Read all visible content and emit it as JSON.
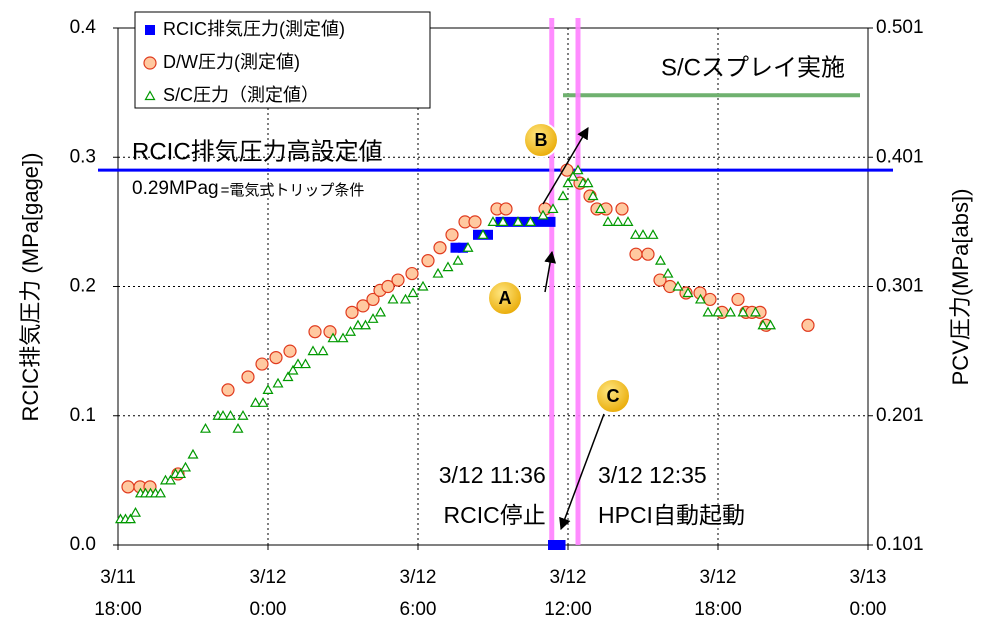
{
  "chart_data": {
    "type": "scatter",
    "y_label": "RCIC排気圧力 (MPa[gage])",
    "y2_label": "PCV圧力(MPa[abs])",
    "xlim": [
      0,
      30
    ],
    "xticks": [
      {
        "value": 0,
        "label": "3/11\n18:00"
      },
      {
        "value": 6,
        "label": "3/12\n0:00"
      },
      {
        "value": 12,
        "label": "3/12\n6:00"
      },
      {
        "value": 18,
        "label": "3/12\n12:00"
      },
      {
        "value": 24,
        "label": "3/12\n18:00"
      },
      {
        "value": 30,
        "label": "3/13\n0:00"
      }
    ],
    "ylim": [
      0,
      0.4
    ],
    "yticks": [
      {
        "value": 0,
        "label": "0.0"
      },
      0.1,
      0.2,
      0.3,
      0.4
    ],
    "y2lim": [
      0.101,
      0.501
    ],
    "y2ticks": [
      0.101,
      0.201,
      0.301,
      0.401,
      0.501
    ],
    "grid": true,
    "legend": "upper left",
    "series": [
      {
        "name": "RCIC排気圧力(測定値)",
        "marker": "square",
        "color": "#0000ff",
        "x": [
          13.5,
          13.8,
          14.4,
          14.8,
          15.3,
          15.7,
          16.1,
          16.5,
          16.9,
          17.3,
          17.4,
          17.7
        ],
        "values": [
          0.23,
          0.23,
          0.24,
          0.24,
          0.25,
          0.25,
          0.25,
          0.25,
          0.25,
          0.25,
          0,
          0
        ]
      },
      {
        "name": "D/W圧力(測定値)",
        "marker": "circle",
        "color": "#e03a1e",
        "axis": "y2",
        "x": [
          0.4,
          0.88,
          1.28,
          2.4,
          4.4,
          5.2,
          5.76,
          6.32,
          6.88,
          7.88,
          8.48,
          9.36,
          9.8,
          10.2,
          10.48,
          10.8,
          11.2,
          11.76,
          12.4,
          12.88,
          13.36,
          13.88,
          14.28,
          15.16,
          15.52,
          17.08,
          17.96,
          18.48,
          18.88,
          19.16,
          19.52,
          20.16,
          20.72,
          21.2,
          21.68,
          22.08,
          22.72,
          23.28,
          23.68,
          24.16,
          24.8,
          25.12,
          25.36,
          25.68,
          25.92,
          27.6
        ],
        "values": [
          0.146,
          0.146,
          0.146,
          0.156,
          0.221,
          0.231,
          0.241,
          0.246,
          0.251,
          0.266,
          0.266,
          0.281,
          0.286,
          0.291,
          0.298,
          0.301,
          0.306,
          0.311,
          0.321,
          0.331,
          0.341,
          0.351,
          0.351,
          0.361,
          0.361,
          0.361,
          0.391,
          0.381,
          0.371,
          0.361,
          0.361,
          0.361,
          0.326,
          0.326,
          0.306,
          0.301,
          0.296,
          0.296,
          0.291,
          0.281,
          0.291,
          0.281,
          0.281,
          0.281,
          0.271,
          0.271
        ]
      },
      {
        "name": "S/C圧力（測定値）",
        "marker": "triangle",
        "color": "#009900",
        "axis": "y2",
        "x": [
          0.1,
          0.3,
          0.5,
          0.7,
          0.9,
          1.1,
          1.3,
          1.5,
          1.7,
          1.9,
          2.1,
          2.3,
          2.5,
          2.7,
          3.0,
          3.5,
          4.0,
          4.2,
          4.5,
          4.8,
          5.0,
          5.5,
          5.8,
          6.0,
          6.4,
          6.8,
          7.0,
          7.2,
          7.5,
          7.8,
          8.2,
          8.6,
          9.0,
          9.3,
          9.6,
          9.9,
          10.2,
          10.5,
          11.0,
          11.5,
          11.8,
          12.2,
          12.8,
          13.2,
          13.6,
          14.0,
          14.6,
          15.0,
          15.4,
          16.0,
          16.5,
          17.0,
          17.4,
          17.8,
          18.0,
          18.2,
          18.4,
          18.6,
          18.8,
          19.0,
          19.3,
          19.6,
          20.0,
          20.4,
          20.7,
          21.0,
          21.4,
          21.7,
          22.0,
          22.4,
          22.8,
          23.3,
          23.6,
          24.0,
          24.5,
          25.0,
          25.5,
          25.8,
          26.1
        ],
        "values": [
          0.121,
          0.121,
          0.121,
          0.126,
          0.141,
          0.141,
          0.141,
          0.141,
          0.141,
          0.151,
          0.151,
          0.156,
          0.156,
          0.161,
          0.171,
          0.191,
          0.201,
          0.201,
          0.201,
          0.191,
          0.201,
          0.211,
          0.211,
          0.221,
          0.226,
          0.231,
          0.236,
          0.241,
          0.241,
          0.251,
          0.251,
          0.261,
          0.261,
          0.266,
          0.271,
          0.271,
          0.276,
          0.281,
          0.291,
          0.291,
          0.296,
          0.301,
          0.311,
          0.316,
          0.321,
          0.331,
          0.341,
          0.351,
          0.351,
          0.351,
          0.351,
          0.356,
          0.361,
          0.371,
          0.381,
          0.386,
          0.391,
          0.381,
          0.381,
          0.371,
          0.361,
          0.351,
          0.351,
          0.351,
          0.341,
          0.341,
          0.341,
          0.321,
          0.311,
          0.301,
          0.296,
          0.291,
          0.281,
          0.281,
          0.281,
          0.281,
          0.281,
          0.271,
          0.271
        ]
      }
    ],
    "reference_line": {
      "value": 0.29,
      "color": "#0000ff",
      "label": "RCIC排気圧力高設定値",
      "sublabel": "0.29MPag",
      "note": "=電気式トリップ条件"
    },
    "spray": {
      "value": 0.449,
      "x_start": 17.8,
      "color": "#6fb16f",
      "label": "S/Cスプレイ実施",
      "label_color": "#008800"
    },
    "events": [
      {
        "x": 17.35,
        "time": "3/12 11:36",
        "label": "RCIC停止",
        "color": "#ff0000"
      },
      {
        "x": 18.4,
        "time": "3/12 12:35",
        "label": "HPCI自動起動",
        "color": "#000000"
      }
    ],
    "markers": [
      "A",
      "B",
      "C"
    ]
  }
}
